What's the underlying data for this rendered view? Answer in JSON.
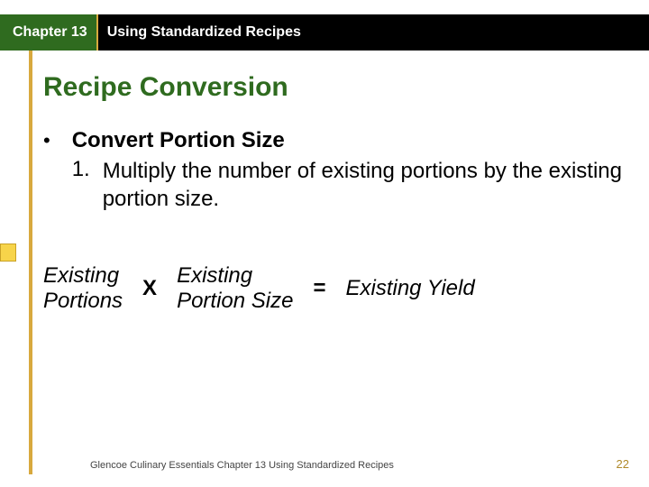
{
  "header": {
    "chapter_label": "Chapter 13",
    "chapter_title": "Using Standardized Recipes"
  },
  "colors": {
    "accent_green": "#2f6b1f",
    "accent_gold": "#d8a93e",
    "tab_yellow": "#f7d44a",
    "header_bg": "#000000"
  },
  "slide_title": "Recipe Conversion",
  "bullet": {
    "marker": "•",
    "heading": "Convert Portion Size",
    "step_number": "1.",
    "step_text": "Multiply the number of existing portions by the existing portion size."
  },
  "equation": {
    "term1_line1": "Existing",
    "term1_line2": "Portions",
    "op1": "X",
    "term2_line1": "Existing",
    "term2_line2": "Portion Size",
    "op2": "=",
    "term3": "Existing Yield"
  },
  "footer": {
    "source": "Glencoe Culinary Essentials Chapter 13 Using Standardized Recipes",
    "page": "22"
  }
}
